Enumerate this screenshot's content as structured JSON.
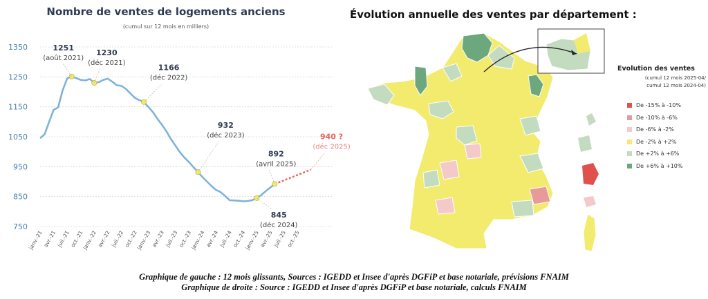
{
  "left_chart": {
    "title": "Nombre de ventes de logements anciens",
    "subtitle": "(cumul sur 12 mois en milliers)"
  },
  "right_chart": {
    "title": "Évolution annuelle des ventes par département :",
    "legend": {
      "title": "Evolution des ventes",
      "subtitle_1": "(cumul 12 mois 2025-04/",
      "subtitle_2": "cumul 12 mois 2024-04)",
      "items": [
        {
          "label": "De -15% à -10%",
          "color": "#e0504d"
        },
        {
          "label": "De -10% à -6%",
          "color": "#e89a9a"
        },
        {
          "label": "De -6% à -2%",
          "color": "#f3c9c9"
        },
        {
          "label": "De -2% à +2%",
          "color": "#f2eb6e"
        },
        {
          "label": "De +2% à +6%",
          "color": "#c3dcc0"
        },
        {
          "label": "De +6% à +10%",
          "color": "#6ca77e"
        }
      ]
    }
  },
  "caption": {
    "line1": "Graphique de gauche : 12 mois glissants, Sources : IGEDD et Insee d'après DGFiP et base notariale, prévisions FNAIM",
    "line2": "Graphique de droite : Source : IGEDD et Insee d'après DGFiP et base notariale, calculs FNAIM"
  },
  "colors": {
    "line": "#7fb3d8",
    "forecast": "#e8625c",
    "marker": "#f2eb6e",
    "axis_text": "#4a7fb0"
  },
  "chart_data": {
    "type": "line",
    "title": "Nombre de ventes de logements anciens",
    "subtitle": "(cumul sur 12 mois en milliers)",
    "ylim": [
      750,
      1350
    ],
    "yticks": [
      750,
      850,
      950,
      1050,
      1150,
      1250,
      1350
    ],
    "x_tick_labels": [
      "janv.-21",
      "avr.-21",
      "juil.-21",
      "oct.-21",
      "janv.-22",
      "avr.-22",
      "juil.-22",
      "oct.-22",
      "janv.-23",
      "avr.-23",
      "juil.-23",
      "oct.-23",
      "janv.-24",
      "avr.-24",
      "juil.-24",
      "oct.-24",
      "janv.-25",
      "avr.-25",
      "juil.-25",
      "oct.-25"
    ],
    "series": [
      {
        "values": [
          1045,
          1058,
          1100,
          1140,
          1148,
          1205,
          1245,
          1251,
          1246,
          1240,
          1238,
          1243,
          1230,
          1232,
          1240,
          1244,
          1234,
          1222,
          1220,
          1210,
          1195,
          1180,
          1172,
          1166,
          1150,
          1132,
          1110,
          1090,
          1068,
          1042,
          1020,
          998,
          980,
          965,
          948,
          932,
          915,
          900,
          885,
          872,
          865,
          852,
          838,
          837,
          836,
          834,
          835,
          838,
          845,
          855,
          868,
          880,
          892
        ]
      },
      {
        "values": [
          null,
          null,
          null,
          null,
          null,
          null,
          null,
          null,
          null,
          null,
          null,
          null,
          null,
          null,
          null,
          null,
          null,
          null,
          null,
          null,
          null,
          null,
          null,
          null,
          null,
          null,
          null,
          null,
          null,
          null,
          null,
          null,
          null,
          null,
          null,
          null,
          null,
          null,
          null,
          null,
          null,
          null,
          null,
          null,
          null,
          null,
          null,
          null,
          null,
          null,
          null,
          null,
          892,
          898,
          904,
          910,
          916,
          922,
          928,
          934,
          940
        ]
      }
    ],
    "annotations": [
      {
        "value": "1251",
        "date": "(août 2021)",
        "index": 7
      },
      {
        "value": "1230",
        "date": "(déc 2021)",
        "index": 12
      },
      {
        "value": "1166",
        "date": "(déc 2022)",
        "index": 23
      },
      {
        "value": "932",
        "date": "(déc 2023)",
        "index": 35
      },
      {
        "value": "892",
        "date": "(avril 2025)",
        "index": 52
      },
      {
        "value": "845",
        "date": "(déc 2024)",
        "index": 48
      },
      {
        "value": "940 ?",
        "date": "(déc 2025)",
        "index": 60
      }
    ]
  }
}
